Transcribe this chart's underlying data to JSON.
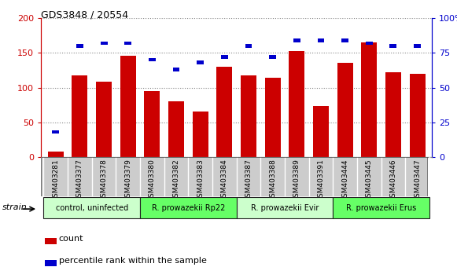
{
  "title": "GDS3848 / 20554",
  "samples": [
    "GSM403281",
    "GSM403377",
    "GSM403378",
    "GSM403379",
    "GSM403380",
    "GSM403382",
    "GSM403383",
    "GSM403384",
    "GSM403387",
    "GSM403388",
    "GSM403389",
    "GSM403391",
    "GSM403444",
    "GSM403445",
    "GSM403446",
    "GSM403447"
  ],
  "count_values": [
    8,
    118,
    108,
    146,
    95,
    80,
    65,
    130,
    118,
    114,
    152,
    74,
    136,
    165,
    122,
    120
  ],
  "percentile_values": [
    18,
    80,
    82,
    82,
    70,
    63,
    68,
    72,
    80,
    72,
    84,
    84,
    84,
    82,
    80,
    80
  ],
  "groups": [
    {
      "label": "control, uninfected",
      "start": 0,
      "end": 4,
      "color": "#ccffcc"
    },
    {
      "label": "R. prowazekii Rp22",
      "start": 4,
      "end": 8,
      "color": "#66ff66"
    },
    {
      "label": "R. prowazekii Evir",
      "start": 8,
      "end": 12,
      "color": "#ccffcc"
    },
    {
      "label": "R. prowazekii Erus",
      "start": 12,
      "end": 16,
      "color": "#66ff66"
    }
  ],
  "left_ylim": [
    0,
    200
  ],
  "right_ylim": [
    0,
    100
  ],
  "left_yticks": [
    0,
    50,
    100,
    150,
    200
  ],
  "right_yticks": [
    0,
    25,
    50,
    75,
    100
  ],
  "right_yticklabels": [
    "0",
    "25",
    "50",
    "75",
    "100‰"
  ],
  "left_color": "#cc0000",
  "right_color": "#0000cc",
  "bar_color": "#cc0000",
  "dot_color": "#0000cc",
  "grid_color": "#888888",
  "sample_bg": "#cccccc",
  "legend_count_label": "count",
  "legend_percentile_label": "percentile rank within the sample",
  "strain_label": "strain"
}
